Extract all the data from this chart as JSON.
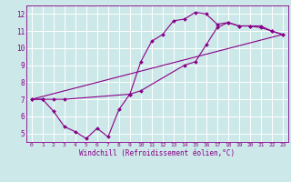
{
  "xlabel": "Windchill (Refroidissement éolien,°C)",
  "bg_color": "#cce8e8",
  "grid_color": "#ffffff",
  "line_color": "#880088",
  "xlim": [
    -0.5,
    23.5
  ],
  "ylim": [
    4.5,
    12.5
  ],
  "xticks": [
    0,
    1,
    2,
    3,
    4,
    5,
    6,
    7,
    8,
    9,
    10,
    11,
    12,
    13,
    14,
    15,
    16,
    17,
    18,
    19,
    20,
    21,
    22,
    23
  ],
  "yticks": [
    5,
    6,
    7,
    8,
    9,
    10,
    11,
    12
  ],
  "series1_x": [
    0,
    1,
    2,
    3,
    4,
    5,
    6,
    7,
    8,
    9,
    10,
    11,
    12,
    13,
    14,
    15,
    16,
    17,
    18,
    19,
    20,
    21,
    22,
    23
  ],
  "series1_y": [
    7.0,
    7.0,
    6.3,
    5.4,
    5.1,
    4.7,
    5.3,
    4.8,
    6.4,
    7.3,
    9.2,
    10.4,
    10.8,
    11.6,
    11.7,
    12.1,
    12.0,
    11.4,
    11.5,
    11.3,
    11.3,
    11.2,
    11.0,
    10.8
  ],
  "series2_x": [
    0,
    1,
    2,
    3,
    9,
    10,
    14,
    15,
    16,
    17,
    18,
    19,
    20,
    21,
    22,
    23
  ],
  "series2_y": [
    7.0,
    7.0,
    7.0,
    7.0,
    7.3,
    7.5,
    9.0,
    9.2,
    10.2,
    11.2,
    11.5,
    11.3,
    11.3,
    11.3,
    11.0,
    10.8
  ],
  "series3_x": [
    0,
    23
  ],
  "series3_y": [
    7.0,
    10.8
  ],
  "xlabel_fontsize": 5.5,
  "tick_fontsize": 5.5,
  "marker_size": 2.0,
  "line_width": 0.8
}
